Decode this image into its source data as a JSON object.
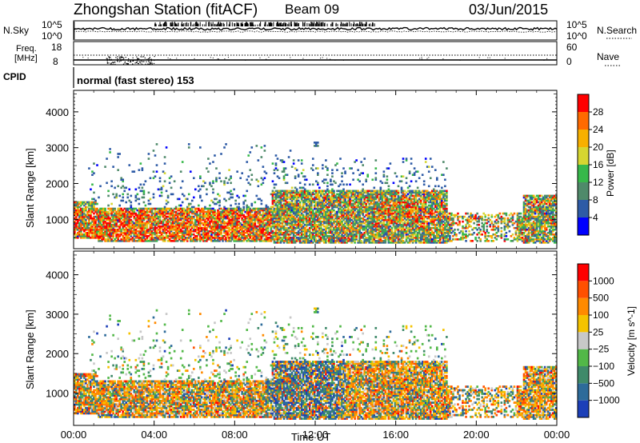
{
  "header": {
    "title": "Zhongshan Station (fitACF)",
    "beam": "Beam 09",
    "date": "03/Jun/2015"
  },
  "status_panels": {
    "nsky": {
      "label": "N.Sky",
      "top_tick": "10^5",
      "bottom_tick": "10^0"
    },
    "nsearch": {
      "label": "N.Search",
      "top_tick": "10^5",
      "bottom_tick": "10^0"
    },
    "freq": {
      "label_1": "Freq.",
      "label_2": "[MHz]",
      "top_tick": "18",
      "bottom_tick": "8"
    },
    "nave": {
      "label": "Nave",
      "top_tick": "60",
      "bottom_tick": "0"
    },
    "cpid": {
      "label": "CPID",
      "value": "normal (fast stereo) 153"
    }
  },
  "chart_data": [
    {
      "type": "heatmap",
      "name": "power",
      "ylabel": "Slant Range [km]",
      "ylim": [
        180,
        4600
      ],
      "yticks": [
        "1000",
        "2000",
        "3000",
        "4000"
      ],
      "colorbar": {
        "label": "Power [dB]",
        "ticks": [
          "4",
          "8",
          "12",
          "16",
          "20",
          "24",
          "28"
        ],
        "colors": [
          "#0000ff",
          "#2e5ba6",
          "#4f8a6a",
          "#37b84a",
          "#d6d631",
          "#f7b000",
          "#ff6a00",
          "#ff0000"
        ]
      },
      "description_regions": [
        {
          "t0": 0.0,
          "t1": 9.8,
          "r0": 400,
          "r1": 1300,
          "level": "high"
        },
        {
          "t0": 9.8,
          "t1": 18.5,
          "r0": 350,
          "r1": 1800,
          "level": "mid"
        },
        {
          "t0": 22.3,
          "t1": 24.0,
          "r0": 800,
          "r1": 1700,
          "level": "mid"
        }
      ]
    },
    {
      "type": "heatmap",
      "name": "velocity",
      "xlabel": "Time UT",
      "ylabel": "Slant Range [km]",
      "ylim": [
        180,
        4600
      ],
      "yticks": [
        "1000",
        "2000",
        "3000",
        "4000"
      ],
      "xticks": [
        "00:00",
        "04:00",
        "08:00",
        "12:00",
        "16:00",
        "20:00",
        "00:00"
      ],
      "colorbar": {
        "label": "Velocity [m s^-1]",
        "ticks": [
          "1000",
          "500",
          "100",
          "25",
          "−25",
          "−100",
          "−500",
          "−1000"
        ],
        "colors": [
          "#1c3fb8",
          "#2d6b9a",
          "#3f8a6a",
          "#52b848",
          "#c8c8c8",
          "#f5c300",
          "#ff8a00",
          "#ff5000",
          "#ff0000"
        ]
      }
    }
  ],
  "colors": {
    "axis": "#000000",
    "background": "#ffffff"
  }
}
